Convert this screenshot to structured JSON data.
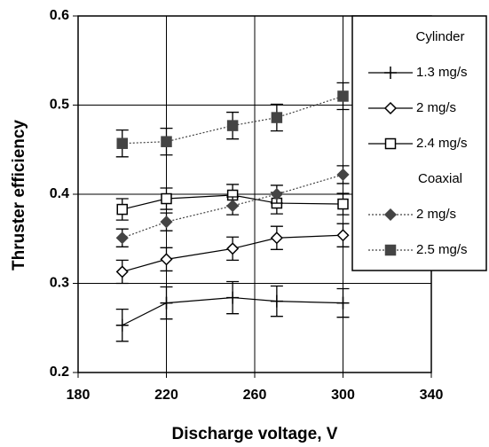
{
  "chart_data": {
    "type": "line",
    "xlabel": "Discharge voltage, V",
    "ylabel": "Thruster efficiency",
    "x": [
      200,
      220,
      250,
      270,
      300
    ],
    "xlim": [
      180,
      340
    ],
    "xticks": [
      180,
      220,
      260,
      300,
      340
    ],
    "ylim": [
      0.2,
      0.6
    ],
    "yticks": [
      0.2,
      0.3,
      0.4,
      0.5,
      0.6
    ],
    "grid": true,
    "legend_position": "right",
    "legend_groups": [
      {
        "title": "Cylinder"
      },
      {
        "title": "Coaxial"
      }
    ],
    "series": [
      {
        "name": "1.3 mg/s",
        "group": 0,
        "color": "#000000",
        "marker": "plus",
        "dash": "solid",
        "values": [
          0.253,
          0.278,
          0.284,
          0.28,
          0.278
        ],
        "errors": [
          0.018,
          0.018,
          0.018,
          0.017,
          0.016
        ]
      },
      {
        "name": "2 mg/s",
        "group": 0,
        "color": "#000000",
        "marker": "diamond-open",
        "dash": "solid",
        "values": [
          0.313,
          0.327,
          0.339,
          0.351,
          0.354
        ],
        "errors": [
          0.013,
          0.013,
          0.013,
          0.013,
          0.013
        ]
      },
      {
        "name": "2.4 mg/s",
        "group": 0,
        "color": "#000000",
        "marker": "square-open",
        "dash": "solid",
        "values": [
          0.383,
          0.395,
          0.399,
          0.39,
          0.389
        ],
        "errors": [
          0.012,
          0.012,
          0.012,
          0.012,
          0.012
        ]
      },
      {
        "name": "2 mg/s",
        "group": 1,
        "color": "#444444",
        "marker": "diamond-filled",
        "dash": "dotted",
        "values": [
          0.351,
          0.369,
          0.387,
          0.4,
          0.422
        ],
        "errors": [
          0.01,
          0.01,
          0.01,
          0.01,
          0.01
        ]
      },
      {
        "name": "2.5 mg/s",
        "group": 1,
        "color": "#444444",
        "marker": "square-filled",
        "dash": "dotted",
        "values": [
          0.457,
          0.459,
          0.477,
          0.486,
          0.51
        ],
        "errors": [
          0.015,
          0.015,
          0.015,
          0.015,
          0.015
        ]
      }
    ]
  }
}
